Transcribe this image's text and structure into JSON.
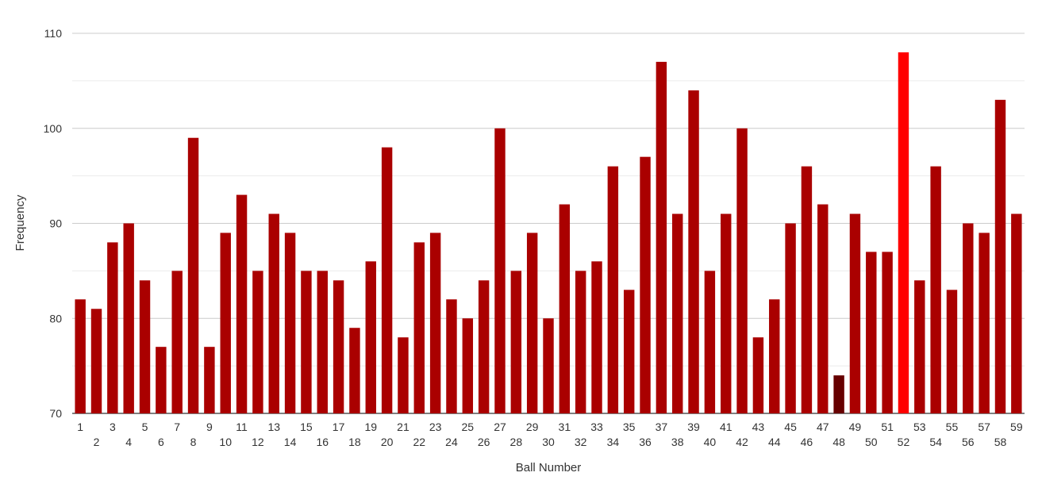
{
  "chart_data": {
    "type": "bar",
    "title": "",
    "xlabel": "Ball Number",
    "ylabel": "Frequency",
    "ylim": [
      70,
      110
    ],
    "yticks": [
      70,
      80,
      90,
      100,
      110
    ],
    "grid": true,
    "legend": "none",
    "categories": [
      "1",
      "2",
      "3",
      "4",
      "5",
      "6",
      "7",
      "8",
      "9",
      "10",
      "11",
      "12",
      "13",
      "14",
      "15",
      "16",
      "17",
      "18",
      "19",
      "20",
      "21",
      "22",
      "23",
      "24",
      "25",
      "26",
      "27",
      "28",
      "29",
      "30",
      "31",
      "32",
      "33",
      "34",
      "35",
      "36",
      "37",
      "38",
      "39",
      "40",
      "41",
      "42",
      "43",
      "44",
      "45",
      "46",
      "47",
      "48",
      "49",
      "50",
      "51",
      "52",
      "53",
      "54",
      "55",
      "56",
      "57",
      "58",
      "59"
    ],
    "values": [
      82,
      81,
      88,
      90,
      84,
      77,
      85,
      99,
      77,
      89,
      93,
      85,
      91,
      89,
      85,
      85,
      84,
      79,
      86,
      98,
      78,
      88,
      89,
      82,
      80,
      84,
      100,
      85,
      89,
      80,
      92,
      85,
      86,
      96,
      83,
      97,
      107,
      91,
      104,
      85,
      91,
      100,
      78,
      82,
      90,
      96,
      92,
      74,
      91,
      87,
      87,
      108,
      84,
      96,
      83,
      90,
      89,
      103,
      91
    ],
    "colors": {
      "default": "#aa0000",
      "max": "#ff0000",
      "min": "#660000",
      "gridMajor": "#cccccc",
      "gridMinor": "#ebebeb",
      "axis": "#333333"
    }
  }
}
